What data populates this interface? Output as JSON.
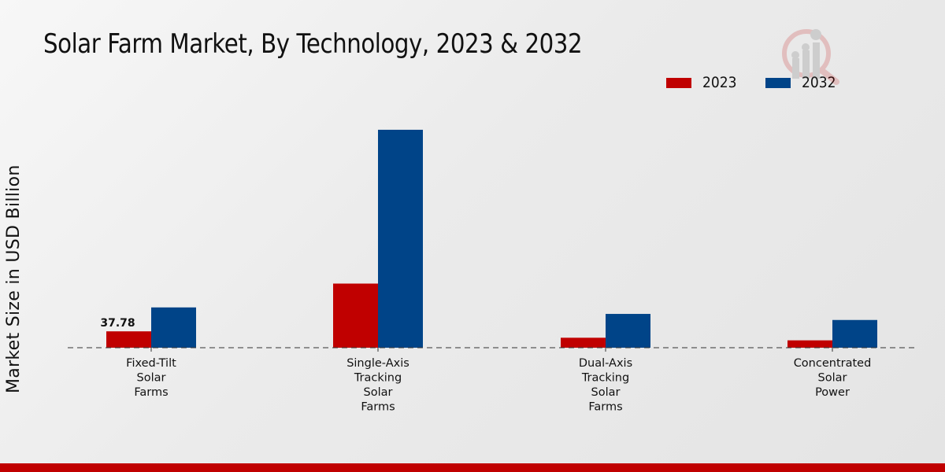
{
  "chart_data": {
    "type": "bar",
    "title": "Solar Farm Market, By Technology, 2023 & 2032",
    "xlabel": "",
    "ylabel": "Market Size in USD Billion",
    "categories": [
      [
        "Fixed-Tilt",
        "Solar",
        "Farms"
      ],
      [
        "Single-Axis",
        "Tracking",
        "Solar",
        "Farms"
      ],
      [
        "Dual-Axis",
        "Tracking",
        "Solar",
        "Farms"
      ],
      [
        "Concentrated",
        "Solar",
        "Power"
      ]
    ],
    "series": [
      {
        "name": "2023",
        "color": "#c00000",
        "values": [
          37.78,
          148,
          23,
          17
        ]
      },
      {
        "name": "2032",
        "color": "#004488",
        "values": [
          93,
          503,
          78,
          64
        ]
      }
    ],
    "data_labels": [
      {
        "series": 0,
        "index": 0,
        "text": "37.78"
      }
    ],
    "ylim": [
      0,
      650
    ],
    "grid": false,
    "baseline_style": "dashed",
    "legend_position": "top-right"
  },
  "legend": {
    "items": [
      {
        "label": "2023",
        "color": "#c00000"
      },
      {
        "label": "2032",
        "color": "#004488"
      }
    ]
  },
  "footer_color": "#c00000"
}
